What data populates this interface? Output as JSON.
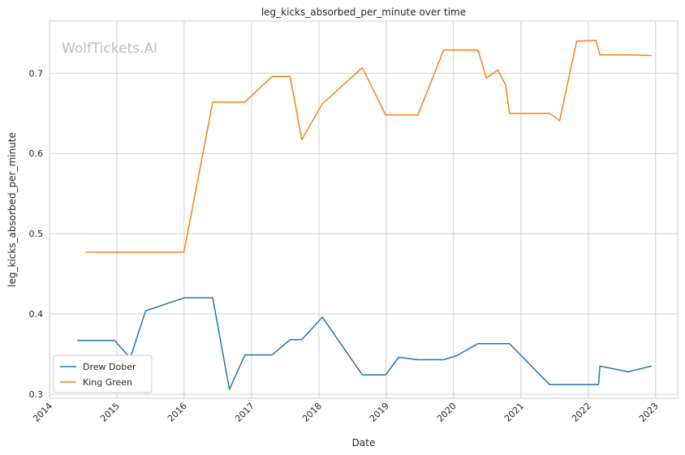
{
  "chart_data": {
    "type": "line",
    "title": "leg_kicks_absorbed_per_minute over time",
    "xlabel": "Date",
    "ylabel": "leg_kicks_absorbed_per_minute",
    "watermark": "WolfTickets.AI",
    "xlim": [
      "2014-01-01",
      "2023-05-01"
    ],
    "ylim": [
      0.295,
      0.765
    ],
    "x_ticks": [
      "2014-01-01",
      "2015-01-01",
      "2016-01-01",
      "2017-01-01",
      "2018-01-01",
      "2019-01-01",
      "2020-01-01",
      "2021-01-01",
      "2022-01-01",
      "2023-01-01"
    ],
    "x_tick_labels": [
      "2014",
      "2015",
      "2016",
      "2017",
      "2018",
      "2019",
      "2020",
      "2021",
      "2022",
      "2023"
    ],
    "y_ticks": [
      0.3,
      0.4,
      0.5,
      0.6,
      0.7
    ],
    "y_tick_labels": [
      "0.3",
      "0.4",
      "0.5",
      "0.6",
      "0.7"
    ],
    "grid": true,
    "legend_position": "lower-left",
    "series": [
      {
        "name": "Drew Dober",
        "color": "#1f77b4",
        "points": [
          [
            "2014-05-31",
            0.367
          ],
          [
            "2014-12-20",
            0.367
          ],
          [
            "2015-03-15",
            0.345
          ],
          [
            "2015-06-06",
            0.404
          ],
          [
            "2015-12-31",
            0.42
          ],
          [
            "2016-06-04",
            0.42
          ],
          [
            "2016-09-03",
            0.306
          ],
          [
            "2016-11-26",
            0.349
          ],
          [
            "2017-04-22",
            0.349
          ],
          [
            "2017-07-29",
            0.368
          ],
          [
            "2017-09-30",
            0.368
          ],
          [
            "2018-01-20",
            0.396
          ],
          [
            "2018-08-25",
            0.324
          ],
          [
            "2018-12-29",
            0.324
          ],
          [
            "2019-03-09",
            0.346
          ],
          [
            "2019-06-22",
            0.343
          ],
          [
            "2019-11-09",
            0.343
          ],
          [
            "2020-01-18",
            0.348
          ],
          [
            "2020-05-13",
            0.363
          ],
          [
            "2020-10-31",
            0.363
          ],
          [
            "2021-06-05",
            0.312
          ],
          [
            "2022-02-26",
            0.312
          ],
          [
            "2022-03-05",
            0.335
          ],
          [
            "2022-08-06",
            0.328
          ],
          [
            "2022-12-10",
            0.335
          ]
        ]
      },
      {
        "name": "King Green",
        "color": "#ff7f0e",
        "points": [
          [
            "2014-07-16",
            0.477
          ],
          [
            "2015-12-31",
            0.477
          ],
          [
            "2016-06-04",
            0.664
          ],
          [
            "2016-11-26",
            0.664
          ],
          [
            "2017-04-22",
            0.696
          ],
          [
            "2017-07-29",
            0.696
          ],
          [
            "2017-09-30",
            0.617
          ],
          [
            "2018-01-20",
            0.662
          ],
          [
            "2018-08-25",
            0.707
          ],
          [
            "2018-12-29",
            0.648
          ],
          [
            "2019-06-22",
            0.648
          ],
          [
            "2019-11-09",
            0.729
          ],
          [
            "2020-05-13",
            0.729
          ],
          [
            "2020-06-27",
            0.694
          ],
          [
            "2020-08-29",
            0.704
          ],
          [
            "2020-10-10",
            0.685
          ],
          [
            "2020-10-31",
            0.65
          ],
          [
            "2021-06-05",
            0.65
          ],
          [
            "2021-07-30",
            0.641
          ],
          [
            "2021-10-30",
            0.74
          ],
          [
            "2022-02-12",
            0.741
          ],
          [
            "2022-03-05",
            0.723
          ],
          [
            "2022-08-06",
            0.723
          ],
          [
            "2022-12-10",
            0.722
          ]
        ]
      }
    ]
  }
}
